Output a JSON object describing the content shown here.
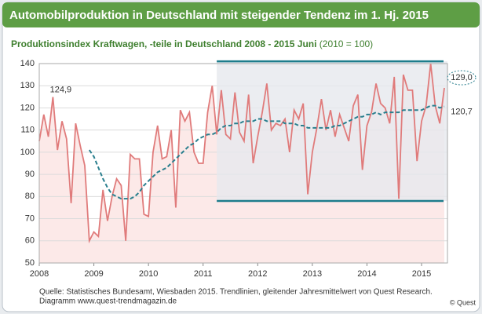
{
  "chart_data": {
    "type": "line",
    "title": "Automobilproduktion in Deutschland mit steigender Tendenz im 1. Hj. 2015",
    "subtitle": "Produktionsindex Kraftwagen, -teile in Deutschland 2008 - 2015 Juni",
    "subtitle_note": "(2010 = 100)",
    "categories": [
      "2008",
      null,
      null,
      null,
      null,
      null,
      null,
      null,
      null,
      null,
      null,
      null,
      "2009",
      null,
      null,
      null,
      null,
      null,
      null,
      null,
      null,
      null,
      null,
      null,
      "2010",
      null,
      null,
      null,
      null,
      null,
      null,
      null,
      null,
      null,
      null,
      null,
      "2011",
      null,
      null,
      null,
      null,
      null,
      null,
      null,
      null,
      null,
      null,
      null,
      "2012",
      null,
      null,
      null,
      null,
      null,
      null,
      null,
      null,
      null,
      null,
      null,
      "2013",
      null,
      null,
      null,
      null,
      null,
      null,
      null,
      null,
      null,
      null,
      null,
      "2014",
      null,
      null,
      null,
      null,
      null,
      null,
      null,
      null,
      null,
      null,
      null,
      "2015",
      null,
      null,
      null,
      null,
      null
    ],
    "series": [
      {
        "color": "#e07b7b",
        "fill": "#fbe1e0",
        "values": [
          105,
          117,
          107,
          124.9,
          101,
          114,
          106,
          77,
          113,
          103,
          94,
          60,
          64,
          62,
          83,
          69,
          80,
          88,
          85,
          60,
          99,
          97,
          97,
          72,
          71,
          100,
          112,
          97,
          98,
          110,
          75,
          119,
          114,
          118,
          100,
          95,
          95,
          118,
          130,
          108,
          128,
          108,
          106,
          127,
          109,
          105,
          126,
          95,
          107,
          118,
          131,
          110,
          113,
          112,
          115,
          100,
          119,
          115,
          122,
          81,
          100,
          111,
          124,
          110,
          119,
          107,
          117,
          111,
          105,
          121,
          126,
          92,
          112,
          118,
          131,
          122,
          120,
          113,
          134,
          79,
          135,
          128,
          128,
          96,
          114,
          121,
          140,
          121,
          113,
          129.0
        ],
        "value_labels": [
          null,
          null,
          null,
          "124,9",
          null,
          null,
          null,
          null,
          null,
          null,
          null,
          null,
          null,
          null,
          null,
          null,
          null,
          null,
          null,
          null,
          null,
          null,
          null,
          null,
          null,
          null,
          null,
          null,
          null,
          null,
          null,
          null,
          null,
          null,
          null,
          null,
          null,
          null,
          null,
          null,
          null,
          null,
          null,
          null,
          null,
          null,
          null,
          null,
          null,
          null,
          null,
          null,
          null,
          null,
          null,
          null,
          null,
          null,
          null,
          null,
          null,
          null,
          null,
          null,
          null,
          null,
          null,
          null,
          null,
          null,
          null,
          null,
          null,
          null,
          null,
          null,
          null,
          null,
          null,
          null,
          null,
          null,
          null,
          null,
          null,
          null,
          null,
          null,
          null,
          "129,0"
        ]
      },
      {
        "color": "#2a7f8e",
        "dashed": true,
        "values": [
          null,
          null,
          null,
          null,
          null,
          null,
          null,
          null,
          null,
          null,
          null,
          101,
          98,
          93,
          88,
          84,
          81,
          80,
          79,
          79,
          79,
          80,
          82,
          85,
          87,
          89,
          91,
          92,
          93,
          95,
          97,
          99,
          101,
          103,
          104,
          106,
          107,
          108,
          108,
          109,
          111,
          112,
          112,
          113,
          113,
          114,
          114,
          114,
          115,
          115,
          114,
          114,
          114,
          114,
          113,
          113,
          113,
          112,
          112,
          111,
          111,
          111,
          111,
          111,
          111,
          112,
          112,
          113,
          114,
          115,
          116,
          116,
          117,
          117,
          118,
          117,
          118,
          118,
          118,
          118,
          119,
          119,
          119,
          119,
          119,
          120,
          121,
          121,
          120,
          120.7
        ],
        "value_labels": [
          null,
          null,
          null,
          null,
          null,
          null,
          null,
          null,
          null,
          null,
          null,
          null,
          null,
          null,
          null,
          null,
          null,
          null,
          null,
          null,
          null,
          null,
          null,
          null,
          null,
          null,
          null,
          null,
          null,
          null,
          null,
          null,
          null,
          null,
          null,
          null,
          null,
          null,
          null,
          null,
          null,
          null,
          null,
          null,
          null,
          null,
          null,
          null,
          null,
          null,
          null,
          null,
          null,
          null,
          null,
          null,
          null,
          null,
          null,
          null,
          null,
          null,
          null,
          null,
          null,
          null,
          null,
          null,
          null,
          null,
          null,
          null,
          null,
          null,
          null,
          null,
          null,
          null,
          null,
          null,
          null,
          null,
          null,
          null,
          null,
          null,
          null,
          null,
          null,
          "120,7"
        ]
      }
    ],
    "highlight": {
      "from": 39,
      "range": [
        78,
        141
      ],
      "color": "#1e7d8c",
      "fill": "#e6e8ee"
    },
    "ylim": [
      50,
      140
    ],
    "yticks": [
      50,
      60,
      70,
      80,
      90,
      100,
      110,
      120,
      130,
      140
    ],
    "grid": true,
    "source": [
      "Quelle: Statistisches Bundesamt, Wiesbaden 2015. Trendlinien, gleitender Jahresmittelwert von Quest Research.",
      "Diagramm  www.quest-trendmagazin.de"
    ],
    "credit": "© Quest"
  }
}
